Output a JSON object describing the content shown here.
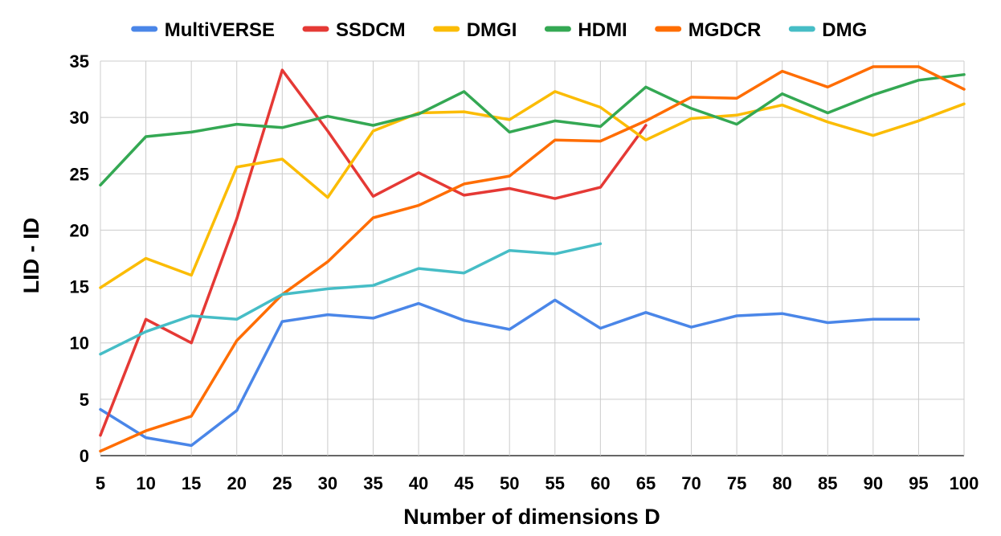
{
  "chart_data": {
    "type": "line",
    "title": "",
    "xlabel": "Number of dimensions D",
    "ylabel": "LID - ID",
    "ylim": [
      0,
      35
    ],
    "yticks": [
      "0",
      "5",
      "10",
      "15",
      "20",
      "25",
      "30",
      "35"
    ],
    "categories": [
      "5",
      "10",
      "15",
      "20",
      "25",
      "30",
      "35",
      "40",
      "45",
      "50",
      "55",
      "60",
      "65",
      "70",
      "75",
      "80",
      "85",
      "90",
      "95",
      "100"
    ],
    "legend_position": "top",
    "grid": true,
    "series": [
      {
        "name": "MultiVERSE",
        "color": "#4a86e8",
        "values": [
          4.1,
          1.6,
          0.9,
          4.0,
          11.9,
          12.5,
          12.2,
          13.5,
          12.0,
          11.2,
          13.8,
          11.3,
          12.7,
          11.4,
          12.4,
          12.6,
          11.8,
          12.1,
          12.1,
          null
        ]
      },
      {
        "name": "SSDCM",
        "color": "#e53935",
        "values": [
          1.8,
          12.1,
          10.0,
          21.0,
          34.2,
          28.8,
          23.0,
          25.1,
          23.1,
          23.7,
          22.8,
          23.8,
          29.3,
          null,
          null,
          null,
          null,
          null,
          null,
          null
        ]
      },
      {
        "name": "DMGI",
        "color": "#fbbc04",
        "values": [
          14.9,
          17.5,
          16.0,
          25.6,
          26.3,
          22.9,
          28.8,
          30.4,
          30.5,
          29.8,
          32.3,
          30.9,
          28.0,
          29.9,
          30.2,
          31.1,
          29.6,
          28.4,
          29.7,
          31.2
        ]
      },
      {
        "name": "HDMI",
        "color": "#34a853",
        "values": [
          24.0,
          28.3,
          28.7,
          29.4,
          29.1,
          30.1,
          29.3,
          30.3,
          32.3,
          28.7,
          29.7,
          29.2,
          32.7,
          30.8,
          29.4,
          32.1,
          30.4,
          32.0,
          33.3,
          33.8
        ]
      },
      {
        "name": "MGDCR",
        "color": "#ff6d01",
        "values": [
          0.4,
          2.2,
          3.5,
          10.2,
          14.3,
          17.2,
          21.1,
          22.2,
          24.1,
          24.8,
          28.0,
          27.9,
          29.7,
          31.8,
          31.7,
          34.1,
          32.7,
          34.5,
          34.5,
          32.5
        ]
      },
      {
        "name": "DMG",
        "color": "#46bdc6",
        "values": [
          9.0,
          11.0,
          12.4,
          12.1,
          14.3,
          14.8,
          15.1,
          16.6,
          16.2,
          18.2,
          17.9,
          18.8,
          null,
          null,
          null,
          null,
          null,
          null,
          null,
          null
        ]
      }
    ]
  }
}
